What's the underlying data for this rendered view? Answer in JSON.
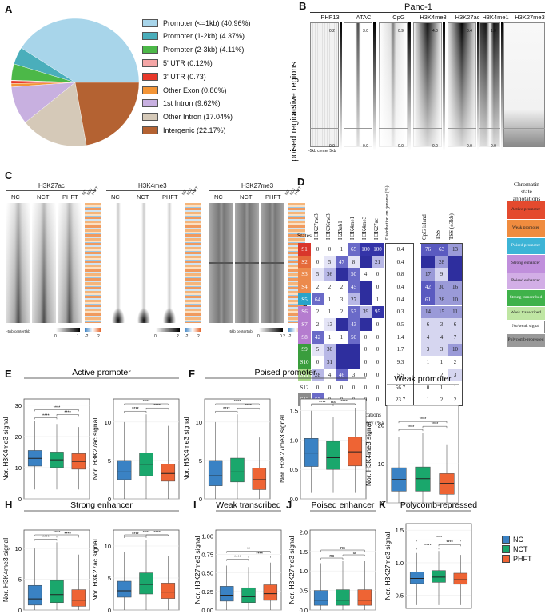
{
  "panels": {
    "a": "A",
    "b": "B",
    "c": "C",
    "d": "D",
    "e": "E",
    "f": "F",
    "g": "G",
    "h": "H",
    "i": "I",
    "j": "J",
    "k": "K"
  },
  "chart_data": [
    {
      "type": "pie",
      "panel": "A",
      "categories": [
        "Promoter (<=1kb)",
        "Promoter (1-2kb)",
        "Promoter (2-3kb)",
        "5' UTR",
        "3' UTR",
        "Other Exon",
        "1st Intron",
        "Other Intron",
        "Intergenic"
      ],
      "values": [
        40.96,
        4.37,
        4.11,
        0.12,
        0.73,
        0.86,
        9.62,
        17.04,
        22.17
      ],
      "labels": [
        "Promoter (<=1kb) (40.96%)",
        "Promoter (1-2kb) (4.37%)",
        "Promoter (2-3kb) (4.11%)",
        "5' UTR (0.12%)",
        "3' UTR (0.73)",
        "Other Exon (0.86%)",
        "1st Intron (9.62%)",
        "Other Intron (17.04%)",
        "Intergenic (22.17%)"
      ],
      "colors": [
        "#a8d5ea",
        "#4aaebb",
        "#4cb848",
        "#f4a6a6",
        "#e8382a",
        "#f39536",
        "#c8b0e0",
        "#d5c9b8",
        "#b46232"
      ]
    }
  ],
  "panel_b": {
    "title": "Panc-1",
    "tracks": [
      "PHF13",
      "ATAC",
      "CpG",
      "H3K4me3",
      "H3K27ac",
      "H3K4me1",
      "H3K27me3"
    ],
    "scale_max": [
      "0.2",
      "3.0",
      "0.9",
      "4.0",
      "0.4",
      "1.0"
    ],
    "scale_min": "0.0",
    "row_labels": [
      "active regions",
      "poised regions"
    ],
    "xaxis": "-5kb center 5kb"
  },
  "panel_c": {
    "groups": [
      {
        "title": "H3K27ac",
        "cols": [
          "NC",
          "NCT",
          "PHFT"
        ],
        "scale_lo": "0",
        "scale_hi": "1"
      },
      {
        "title": "H3K4me3",
        "cols": [
          "NC",
          "NCT",
          "PHFT"
        ],
        "scale_lo": "0",
        "scale_hi": "2"
      },
      {
        "title": "H3K27me3",
        "cols": [
          "NC",
          "NCT",
          "PHFT"
        ],
        "scale_lo": "0",
        "scale_hi": "0.2"
      }
    ],
    "mini_cols": [
      "NC",
      "NCT",
      "PHFT"
    ],
    "xaxis": "-5kb center5kb",
    "xaxis2": "-5kb center5kb",
    "zscale": [
      "-2",
      "2"
    ]
  },
  "panel_d": {
    "ylabel": "Chromatin States",
    "states_header": "States",
    "marks": [
      "H3K27me3",
      "H3K36me3",
      "H2Bub1",
      "H3K4me1",
      "H3K4me3",
      "H3K27ac"
    ],
    "dist_header": "Distribution on genome (%)",
    "overlap_headers": [
      "CpG island",
      "TSS",
      "TSS (±3kb)"
    ],
    "annot_header": "Chromatin state annotations",
    "xlabel1": "Histone Modifications",
    "xlabel2": "Observation Frequency (%)",
    "xlabel3": "Overlap",
    "xlabel4": "Enrichment",
    "rows": [
      {
        "state": "S1",
        "color": "#d9362b",
        "vals": [
          "0",
          "0",
          "1",
          "65",
          "100",
          "100"
        ],
        "dist": "0.4",
        "ov": [
          "76",
          "63",
          "13"
        ]
      },
      {
        "state": "S2",
        "color": "#e56a3a",
        "vals": [
          "0",
          "5",
          "47",
          "8",
          "",
          "21"
        ],
        "dist": "0.4",
        "ov": [
          "",
          "28",
          ""
        ]
      },
      {
        "state": "S3",
        "color": "#ec8a4c",
        "vals": [
          "5",
          "36",
          "",
          "50",
          "4",
          "0"
        ],
        "dist": "0.8",
        "ov": [
          "17",
          "9",
          ""
        ]
      },
      {
        "state": "S4",
        "color": "#ec8a4c",
        "vals": [
          "2",
          "2",
          "2",
          "45",
          "",
          "0"
        ],
        "dist": "0.4",
        "ov": [
          "42",
          "30",
          "16"
        ]
      },
      {
        "state": "S5",
        "color": "#2aa3c9",
        "vals": [
          "64",
          "1",
          "3",
          "27",
          "",
          "1"
        ],
        "dist": "0.4",
        "ov": [
          "61",
          "28",
          "10"
        ]
      },
      {
        "state": "S6",
        "color": "#b57ccf",
        "vals": [
          "2",
          "1",
          "2",
          "53",
          "39",
          "95"
        ],
        "dist": "0.3",
        "ov": [
          "14",
          "15",
          "11"
        ]
      },
      {
        "state": "S7",
        "color": "#b57ccf",
        "vals": [
          "2",
          "13",
          "",
          "43",
          "",
          "0"
        ],
        "dist": "0.5",
        "ov": [
          "6",
          "3",
          "6"
        ]
      },
      {
        "state": "S8",
        "color": "#b57ccf",
        "vals": [
          "42",
          "1",
          "1",
          "50",
          "0",
          "0"
        ],
        "dist": "1.4",
        "ov": [
          "4",
          "4",
          "7"
        ]
      },
      {
        "state": "S9",
        "color": "#3a9d3d",
        "vals": [
          "5",
          "30",
          "",
          "",
          "0",
          "0"
        ],
        "dist": "1.7",
        "ov": [
          "3",
          "3",
          "10"
        ]
      },
      {
        "state": "S10",
        "color": "#3a9d3d",
        "vals": [
          "0",
          "31",
          "",
          "",
          "0",
          "0"
        ],
        "dist": "9.3",
        "ov": [
          "1",
          "1",
          "2"
        ]
      },
      {
        "state": "S11",
        "color": "#a9d98a",
        "vals": [
          "28",
          "4",
          "46",
          "3",
          "0",
          "0"
        ],
        "dist": "5.5",
        "ov": [
          "1",
          "2",
          "3"
        ]
      },
      {
        "state": "S12",
        "color": "#ffffff",
        "vals": [
          "0",
          "0",
          "0",
          "0",
          "0",
          "0"
        ],
        "dist": "56.7",
        "ov": [
          "0",
          "1",
          "1"
        ]
      },
      {
        "state": "S13",
        "color": "#8c8c8c",
        "vals": [
          "53",
          "0",
          "0",
          "0",
          "0",
          "0"
        ],
        "dist": "23.7",
        "ov": [
          "1",
          "2",
          "2"
        ]
      }
    ],
    "annotations": [
      {
        "label": "Active promoter",
        "color": "#e44a2e"
      },
      {
        "label": "Weak promoter",
        "color": "#f08c3f"
      },
      {
        "label": "Poised promoter",
        "color": "#3db4d6"
      },
      {
        "label": "Strong enhancer",
        "color": "#c08fdc"
      },
      {
        "label": "Poised enhancer",
        "color": "#d2aee6"
      },
      {
        "label": "Strong transcribed",
        "color": "#3fb24a"
      },
      {
        "label": "Week transcribed",
        "color": "#bfe6a3"
      },
      {
        "label": "No/weak signal",
        "color": "#ffffff"
      },
      {
        "label": "Polycomb-repressed",
        "color": "#999999"
      }
    ]
  },
  "boxplots": {
    "legend": [
      "NC",
      "NCT",
      "PHFT"
    ],
    "colors": [
      "#3a82c4",
      "#1aa76c",
      "#ee6434"
    ],
    "panels": [
      {
        "id": "E",
        "title": "Active promoter",
        "plots": [
          {
            "ylabel": "Nor. H3K4me3 signal",
            "ticks": [
              "0",
              "10",
              "20",
              "30"
            ],
            "sig": [
              "****",
              "****",
              "****"
            ],
            "boxes": [
              [
                3,
                10.5,
                13,
                15.5,
                25
              ],
              [
                3,
                10,
                12.5,
                15,
                24
              ],
              [
                3,
                9.5,
                12,
                14.5,
                23
              ]
            ],
            "ymax": 32
          },
          {
            "ylabel": "Nor. H3K27ac signal",
            "ticks": [
              "0",
              "5",
              "10"
            ],
            "sig": [
              "****",
              "****",
              "****"
            ],
            "boxes": [
              [
                0,
                2.5,
                3.5,
                5,
                10
              ],
              [
                0,
                3,
                4.5,
                6,
                11
              ],
              [
                0,
                2.3,
                3.3,
                4.5,
                9.5
              ]
            ],
            "ymax": 13
          }
        ]
      },
      {
        "id": "F",
        "title": "Poised promoter",
        "plots": [
          {
            "ylabel": "Nor. H3K4me3 signal",
            "ticks": [
              "0",
              "5",
              "10"
            ],
            "sig": [
              "****",
              "****",
              "****"
            ],
            "boxes": [
              [
                0,
                1.7,
                3,
                5,
                10
              ],
              [
                0,
                2.2,
                3.5,
                5.3,
                11
              ],
              [
                0,
                1.2,
                2.5,
                4,
                8
              ]
            ],
            "ymax": 13
          },
          {
            "ylabel": "Nor. H3K27me3 signal",
            "ticks": [
              "0.0",
              "0.5",
              "1.0",
              "1.5"
            ],
            "sig": [
              "****",
              "****",
              "ns"
            ],
            "boxes": [
              [
                0.1,
                0.55,
                0.78,
                1.03,
                1.5
              ],
              [
                0.1,
                0.5,
                0.7,
                0.98,
                1.4
              ],
              [
                0.1,
                0.56,
                0.8,
                1.05,
                1.55
              ]
            ],
            "ymax": 1.7
          }
        ]
      },
      {
        "id": "G",
        "title": "Weak promoter",
        "plots": [
          {
            "ylabel": "Nor. H3K4me3 signal",
            "ticks": [
              "0",
              "10",
              "20"
            ],
            "sig": [
              "****",
              "****",
              "****"
            ],
            "boxes": [
              [
                0,
                3,
                6,
                9,
                17
              ],
              [
                0,
                3,
                6.2,
                9.2,
                18
              ],
              [
                0,
                2.2,
                5,
                7.5,
                15
              ]
            ],
            "ymax": 25
          }
        ]
      },
      {
        "id": "H",
        "title": "Strong enhancer",
        "plots": [
          {
            "ylabel": "Nor. H3K4me3 signal",
            "ticks": [
              "0",
              "5",
              "10"
            ],
            "sig": [
              "****",
              "****",
              "****"
            ],
            "boxes": [
              [
                0,
                0.8,
                1.8,
                4,
                10
              ],
              [
                0,
                1.2,
                2.5,
                4.8,
                11
              ],
              [
                0,
                0.6,
                1.6,
                3.3,
                9
              ]
            ],
            "ymax": 13
          },
          {
            "ylabel": "Nor. H3K27ac signal",
            "ticks": [
              "0",
              "5",
              "10"
            ],
            "sig": [
              "****",
              "****",
              "****"
            ],
            "boxes": [
              [
                0,
                2,
                3,
                4.5,
                9
              ],
              [
                0,
                2.5,
                4,
                5.8,
                11
              ],
              [
                0,
                1.8,
                2.8,
                4.2,
                8.5
              ]
            ],
            "ymax": 12.5
          }
        ]
      },
      {
        "id": "I",
        "title": "Weak transcribed",
        "plots": [
          {
            "ylabel": "Nor. H3K27me3 signal",
            "ticks": [
              "0.00",
              "0.25",
              "0.50",
              "0.75",
              "1.00"
            ],
            "sig": [
              "****",
              "****",
              "**"
            ],
            "boxes": [
              [
                0,
                0.12,
                0.2,
                0.32,
                0.6
              ],
              [
                0,
                0.1,
                0.18,
                0.3,
                0.58
              ],
              [
                0,
                0.13,
                0.22,
                0.34,
                0.64
              ]
            ],
            "ymax": 1.08
          }
        ]
      },
      {
        "id": "J",
        "title": "Poised enhancer",
        "plots": [
          {
            "ylabel": "Nor. H3K27me3 signal",
            "ticks": [
              "0.0",
              "0.5",
              "1.0",
              "1.5",
              "2.0"
            ],
            "sig": [
              "ns",
              "ns",
              "ns"
            ],
            "boxes": [
              [
                0,
                0.12,
                0.25,
                0.5,
                1.2
              ],
              [
                0,
                0.12,
                0.25,
                0.52,
                1.25
              ],
              [
                0,
                0.12,
                0.25,
                0.52,
                1.25
              ]
            ],
            "ymax": 2.05
          }
        ]
      },
      {
        "id": "K",
        "title": "Polycomb-repressed",
        "plots": [
          {
            "ylabel": "Nor. H3K27me3 signal",
            "ticks": [
              "0.5",
              "1.0",
              "1.5"
            ],
            "sig": [
              "****",
              "****",
              "****"
            ],
            "boxes": [
              [
                0.35,
                0.68,
                0.76,
                0.86,
                1.15
              ],
              [
                0.35,
                0.7,
                0.78,
                0.88,
                1.18
              ],
              [
                0.35,
                0.67,
                0.74,
                0.84,
                1.12
              ]
            ],
            "ymin": 0.3,
            "ymax": 1.6
          }
        ]
      }
    ]
  }
}
